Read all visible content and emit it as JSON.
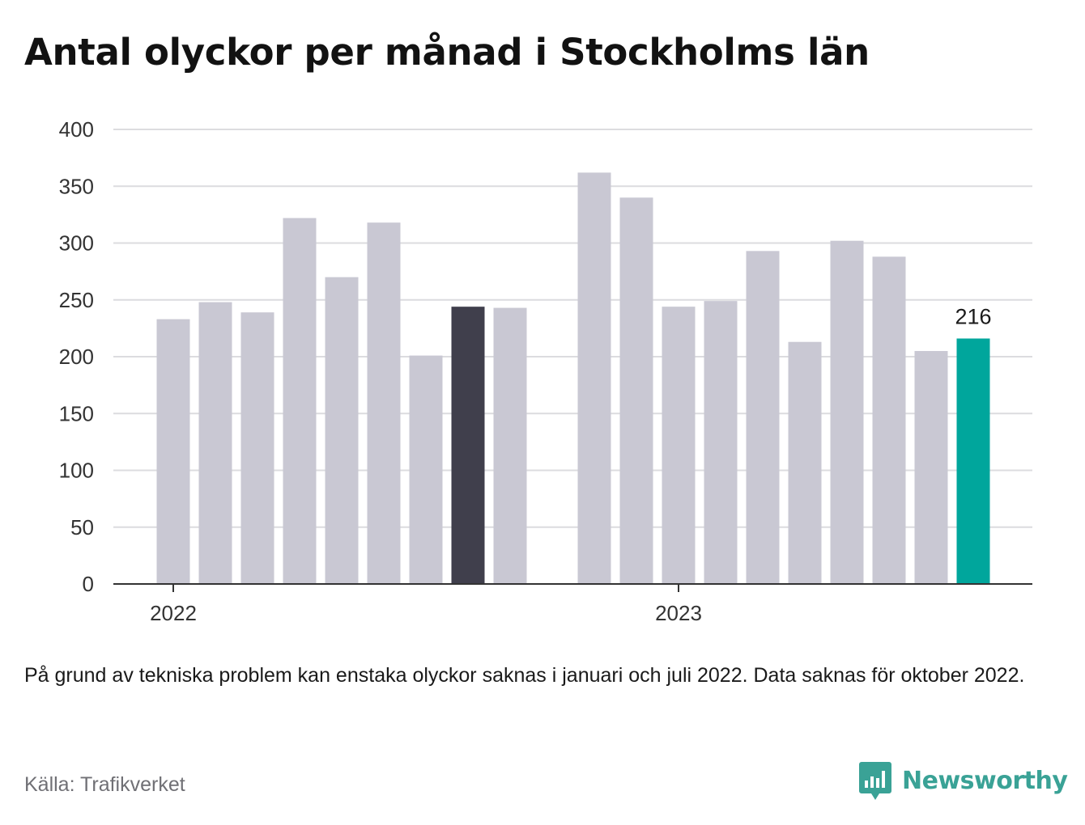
{
  "title": "Antal olyckor per månad i Stockholms län",
  "note": "På grund av tekniska problem kan enstaka olyckor saknas i januari och juli 2022. Data saknas för oktober 2022.",
  "source": "Källa: Trafikverket",
  "brand": {
    "name": "Newsworthy",
    "icon": "newsworthy-logo-icon",
    "color": "#3aa296"
  },
  "chart_data": {
    "type": "bar",
    "title": "Antal olyckor per månad i Stockholms län",
    "ylim": [
      0,
      400
    ],
    "y_ticks": [
      0,
      50,
      100,
      150,
      200,
      250,
      300,
      350,
      400
    ],
    "x_tick_labels": [
      {
        "label": "2022",
        "at_index": 0
      },
      {
        "label": "2023",
        "at_index": 12
      }
    ],
    "grid": true,
    "colors": {
      "default": "#c9c8d3",
      "highlight": "#403f4c",
      "latest": "#00a69c"
    },
    "bars": [
      {
        "year": 2022,
        "month": 1,
        "value": 233,
        "color": "default"
      },
      {
        "year": 2022,
        "month": 2,
        "value": 248,
        "color": "default"
      },
      {
        "year": 2022,
        "month": 3,
        "value": 239,
        "color": "default"
      },
      {
        "year": 2022,
        "month": 4,
        "value": 322,
        "color": "default"
      },
      {
        "year": 2022,
        "month": 5,
        "value": 270,
        "color": "default"
      },
      {
        "year": 2022,
        "month": 6,
        "value": 318,
        "color": "default"
      },
      {
        "year": 2022,
        "month": 7,
        "value": 201,
        "color": "default"
      },
      {
        "year": 2022,
        "month": 8,
        "value": 244,
        "color": "highlight"
      },
      {
        "year": 2022,
        "month": 9,
        "value": 243,
        "color": "default"
      },
      {
        "year": 2022,
        "month": 10,
        "value": null,
        "color": "default"
      },
      {
        "year": 2022,
        "month": 11,
        "value": 362,
        "color": "default"
      },
      {
        "year": 2022,
        "month": 12,
        "value": 340,
        "color": "default"
      },
      {
        "year": 2023,
        "month": 1,
        "value": 244,
        "color": "default"
      },
      {
        "year": 2023,
        "month": 2,
        "value": 249,
        "color": "default"
      },
      {
        "year": 2023,
        "month": 3,
        "value": 293,
        "color": "default"
      },
      {
        "year": 2023,
        "month": 4,
        "value": 213,
        "color": "default"
      },
      {
        "year": 2023,
        "month": 5,
        "value": 302,
        "color": "default"
      },
      {
        "year": 2023,
        "month": 6,
        "value": 288,
        "color": "default"
      },
      {
        "year": 2023,
        "month": 7,
        "value": 205,
        "color": "default"
      },
      {
        "year": 2023,
        "month": 8,
        "value": 216,
        "color": "latest",
        "label": "216"
      }
    ]
  }
}
